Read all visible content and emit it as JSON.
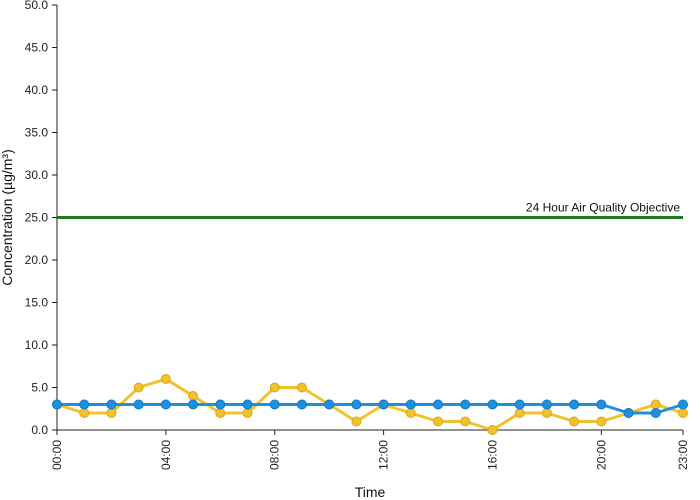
{
  "chart_data": {
    "type": "line",
    "xlabel": "Time",
    "ylabel": "Concentration (µg/m³)",
    "ylim": [
      0,
      50
    ],
    "y_ticks": [
      "0.0",
      "5.0",
      "10.0",
      "15.0",
      "20.0",
      "25.0",
      "30.0",
      "35.0",
      "40.0",
      "45.0",
      "50.0"
    ],
    "x_ticks": [
      {
        "hour": 0,
        "label": "00:00"
      },
      {
        "hour": 4,
        "label": "04:00"
      },
      {
        "hour": 8,
        "label": "08:00"
      },
      {
        "hour": 12,
        "label": "12:00"
      },
      {
        "hour": 16,
        "label": "16:00"
      },
      {
        "hour": 20,
        "label": "20:00"
      },
      {
        "hour": 23,
        "label": "23:00"
      }
    ],
    "xlim_hours": [
      0,
      23
    ],
    "x": [
      0,
      1,
      2,
      3,
      4,
      5,
      6,
      7,
      8,
      9,
      10,
      11,
      12,
      13,
      14,
      15,
      16,
      17,
      18,
      19,
      20,
      21,
      22,
      23
    ],
    "series": [
      {
        "color": "#f2c12e",
        "values": [
          3,
          2,
          2,
          5,
          6,
          4,
          2,
          2,
          5,
          5,
          3,
          1,
          3,
          2,
          1,
          1,
          0,
          2,
          2,
          1,
          1,
          2,
          3,
          2
        ]
      },
      {
        "color": "#1e90e0",
        "values": [
          3,
          3,
          3,
          3,
          3,
          3,
          3,
          3,
          3,
          3,
          3,
          3,
          3,
          3,
          3,
          3,
          3,
          3,
          3,
          3,
          3,
          2,
          2,
          3
        ]
      }
    ],
    "objective": {
      "value": 25,
      "label": "24 Hour Air Quality Objective",
      "color": "#1f7a1f"
    },
    "grid": false
  }
}
